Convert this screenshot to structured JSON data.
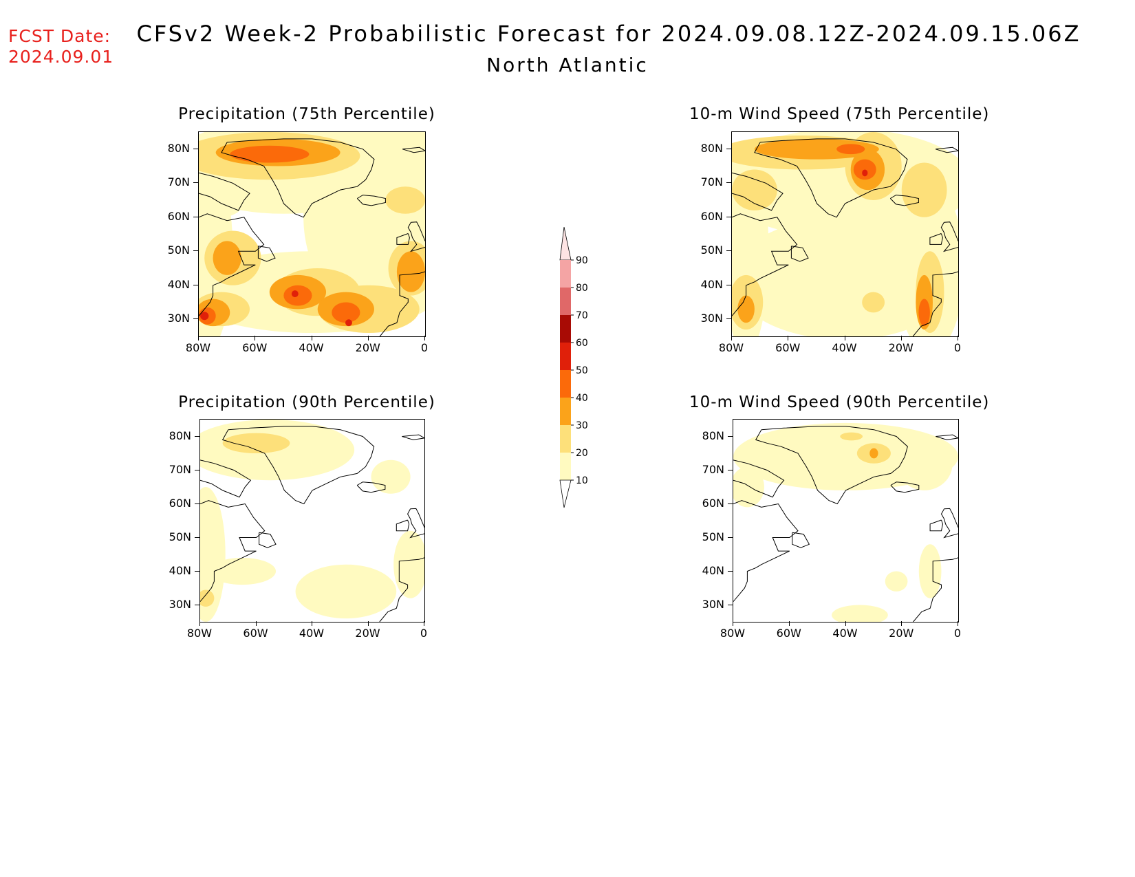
{
  "header": {
    "fcst_label": "FCST Date:",
    "fcst_date": "2024.09.01",
    "title": "CFSv2 Week-2 Probabilistic Forecast for 2024.09.08.12Z-2024.09.15.06Z",
    "region": "North Atlantic"
  },
  "axes": {
    "lat_ticks": [
      "80N",
      "70N",
      "60N",
      "50N",
      "40N",
      "30N"
    ],
    "lon_ticks": [
      "80W",
      "60W",
      "40W",
      "20W",
      "0"
    ],
    "lat_range": [
      25,
      85
    ],
    "lon_range": [
      -80,
      0
    ]
  },
  "panels": [
    {
      "title": "Precipitation (75th Percentile)",
      "variable": "precipitation",
      "percentile": 75
    },
    {
      "title": "10-m Wind Speed (75th Percentile)",
      "variable": "wind-speed",
      "percentile": 75
    },
    {
      "title": "Precipitation (90th Percentile)",
      "variable": "precipitation",
      "percentile": 90
    },
    {
      "title": "10-m Wind Speed (90th Percentile)",
      "variable": "wind-speed",
      "percentile": 90
    }
  ],
  "colorbar": {
    "labels": [
      "90",
      "80",
      "70",
      "60",
      "50",
      "40",
      "30",
      "20",
      "10"
    ],
    "levels": [
      10,
      20,
      30,
      40,
      50,
      60,
      70,
      80,
      90
    ],
    "colors": [
      "#fffac0",
      "#fde07a",
      "#fba31a",
      "#fb6a0a",
      "#e0200a",
      "#a80b05",
      "#e06868",
      "#f4a4a4",
      "#fde4e4"
    ]
  }
}
